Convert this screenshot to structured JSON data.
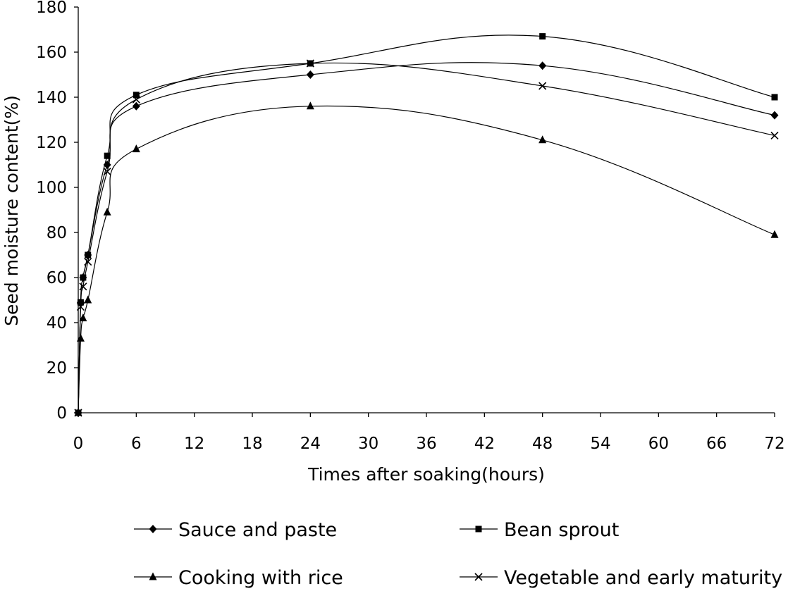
{
  "chart_data": {
    "type": "line",
    "title": "",
    "xlabel": "Times after soaking(hours)",
    "ylabel": "Seed moisture content(%)",
    "xlim": [
      0,
      72
    ],
    "ylim": [
      0,
      180
    ],
    "xticks": [
      "0",
      "6",
      "12",
      "18",
      "24",
      "30",
      "36",
      "42",
      "48",
      "54",
      "60",
      "66",
      "72"
    ],
    "yticks": [
      "0",
      "20",
      "40",
      "60",
      "80",
      "100",
      "120",
      "140",
      "160",
      "180"
    ],
    "grid": false,
    "legend_position": "bottom",
    "series": [
      {
        "name": "Sauce and paste",
        "marker": "diamond",
        "points": [
          [
            0,
            0
          ],
          [
            0.25,
            49
          ],
          [
            0.5,
            60
          ],
          [
            1,
            70
          ],
          [
            3,
            110
          ],
          [
            6,
            136
          ],
          [
            24,
            150
          ],
          [
            48,
            154
          ],
          [
            72,
            132
          ]
        ]
      },
      {
        "name": "Bean sprout",
        "marker": "square",
        "points": [
          [
            0,
            0
          ],
          [
            0.25,
            49
          ],
          [
            0.5,
            60
          ],
          [
            1,
            70
          ],
          [
            3,
            114
          ],
          [
            6,
            141
          ],
          [
            24,
            155
          ],
          [
            48,
            167
          ],
          [
            72,
            140
          ]
        ]
      },
      {
        "name": "Cooking with rice",
        "marker": "triangle",
        "points": [
          [
            0,
            0
          ],
          [
            0.25,
            33
          ],
          [
            0.5,
            42
          ],
          [
            1,
            50
          ],
          [
            3,
            89
          ],
          [
            6,
            117
          ],
          [
            24,
            136
          ],
          [
            48,
            121
          ],
          [
            72,
            79
          ]
        ]
      },
      {
        "name": "Vegetable and early maturity",
        "marker": "x",
        "points": [
          [
            0,
            0
          ],
          [
            0.25,
            47
          ],
          [
            0.5,
            56
          ],
          [
            1,
            67
          ],
          [
            3,
            107
          ],
          [
            6,
            139
          ],
          [
            24,
            155
          ],
          [
            48,
            145
          ],
          [
            72,
            123
          ]
        ]
      }
    ]
  }
}
